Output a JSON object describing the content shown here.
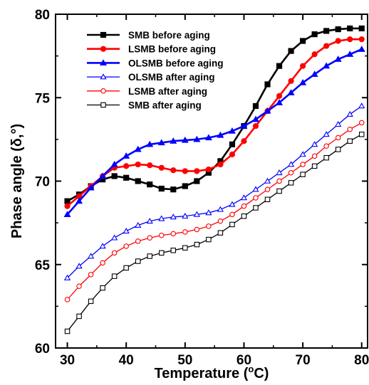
{
  "chart_data": {
    "type": "line",
    "xlabel": "Temperature (",
    "xlabel_sup": "o",
    "xlabel_tail": "C)",
    "ylabel": "Phase angle (δ,°)",
    "xlim": [
      28,
      81
    ],
    "ylim": [
      60,
      80
    ],
    "xticks": [
      30,
      40,
      50,
      60,
      70,
      80
    ],
    "yticks": [
      60,
      65,
      70,
      75,
      80
    ],
    "x_minor_step": 5,
    "y_minor_step": 2.5,
    "grid": false,
    "legend_position": "top-left",
    "series": [
      {
        "name": "SMB before aging",
        "color": "#000000",
        "marker": "square",
        "filled": true,
        "x": [
          30,
          32,
          34,
          36,
          38,
          40,
          42,
          44,
          46,
          48,
          50,
          52,
          54,
          56,
          58,
          60,
          62,
          64,
          66,
          68,
          70,
          72,
          74,
          76,
          78,
          80
        ],
        "y": [
          68.8,
          69.2,
          69.7,
          70.1,
          70.3,
          70.2,
          70.0,
          69.8,
          69.55,
          69.5,
          69.7,
          70.0,
          70.5,
          71.2,
          72.2,
          73.3,
          74.5,
          75.8,
          76.9,
          77.8,
          78.4,
          78.8,
          79.0,
          79.1,
          79.15,
          79.15
        ]
      },
      {
        "name": "LSMB before aging",
        "color": "#ff0000",
        "marker": "circle",
        "filled": true,
        "x": [
          30,
          32,
          34,
          36,
          38,
          40,
          42,
          44,
          46,
          48,
          50,
          52,
          54,
          56,
          58,
          60,
          62,
          64,
          66,
          68,
          70,
          72,
          74,
          76,
          78,
          80
        ],
        "y": [
          68.5,
          69.1,
          69.7,
          70.3,
          70.8,
          70.9,
          71.0,
          70.95,
          70.8,
          70.65,
          70.6,
          70.6,
          70.7,
          71.0,
          71.6,
          72.4,
          73.3,
          74.2,
          75.1,
          76.0,
          76.9,
          77.6,
          78.1,
          78.4,
          78.5,
          78.5
        ]
      },
      {
        "name": "OLSMB before aging",
        "color": "#0000ff",
        "marker": "triangle",
        "filled": true,
        "x": [
          30,
          32,
          34,
          36,
          38,
          40,
          42,
          44,
          46,
          48,
          50,
          52,
          54,
          56,
          58,
          60,
          62,
          64,
          66,
          68,
          70,
          72,
          74,
          76,
          78,
          80
        ],
        "y": [
          68.0,
          68.8,
          69.6,
          70.3,
          71.0,
          71.5,
          71.9,
          72.2,
          72.3,
          72.4,
          72.45,
          72.5,
          72.6,
          72.75,
          73.0,
          73.3,
          73.7,
          74.2,
          74.7,
          75.3,
          75.9,
          76.4,
          76.9,
          77.3,
          77.6,
          77.9
        ]
      },
      {
        "name": "OLSMB after aging",
        "color": "#0000ff",
        "marker": "triangle",
        "filled": false,
        "x": [
          30,
          32,
          34,
          36,
          38,
          40,
          42,
          44,
          46,
          48,
          50,
          52,
          54,
          56,
          58,
          60,
          62,
          64,
          66,
          68,
          70,
          72,
          74,
          76,
          78,
          80
        ],
        "y": [
          64.2,
          64.9,
          65.5,
          66.1,
          66.6,
          67.0,
          67.35,
          67.6,
          67.75,
          67.85,
          67.9,
          68.0,
          68.1,
          68.3,
          68.6,
          69.0,
          69.5,
          70.0,
          70.5,
          71.0,
          71.6,
          72.2,
          72.8,
          73.4,
          74.0,
          74.5
        ]
      },
      {
        "name": "LSMB after aging",
        "color": "#ff0000",
        "marker": "circle",
        "filled": false,
        "x": [
          30,
          32,
          34,
          36,
          38,
          40,
          42,
          44,
          46,
          48,
          50,
          52,
          54,
          56,
          58,
          60,
          62,
          64,
          66,
          68,
          70,
          72,
          74,
          76,
          78,
          80
        ],
        "y": [
          62.9,
          63.7,
          64.4,
          65.1,
          65.7,
          66.1,
          66.4,
          66.6,
          66.75,
          66.85,
          66.95,
          67.1,
          67.3,
          67.6,
          68.0,
          68.5,
          69.0,
          69.5,
          70.0,
          70.5,
          71.0,
          71.5,
          72.1,
          72.6,
          73.1,
          73.5
        ]
      },
      {
        "name": "SMB after aging",
        "color": "#000000",
        "marker": "square",
        "filled": false,
        "x": [
          30,
          32,
          34,
          36,
          38,
          40,
          42,
          44,
          46,
          48,
          50,
          52,
          54,
          56,
          58,
          60,
          62,
          64,
          66,
          68,
          70,
          72,
          74,
          76,
          78,
          80
        ],
        "y": [
          61.0,
          61.9,
          62.8,
          63.6,
          64.3,
          64.8,
          65.2,
          65.5,
          65.7,
          65.85,
          66.0,
          66.2,
          66.5,
          66.9,
          67.4,
          67.9,
          68.4,
          68.9,
          69.4,
          69.9,
          70.4,
          70.9,
          71.4,
          71.9,
          72.4,
          72.8
        ]
      }
    ]
  }
}
